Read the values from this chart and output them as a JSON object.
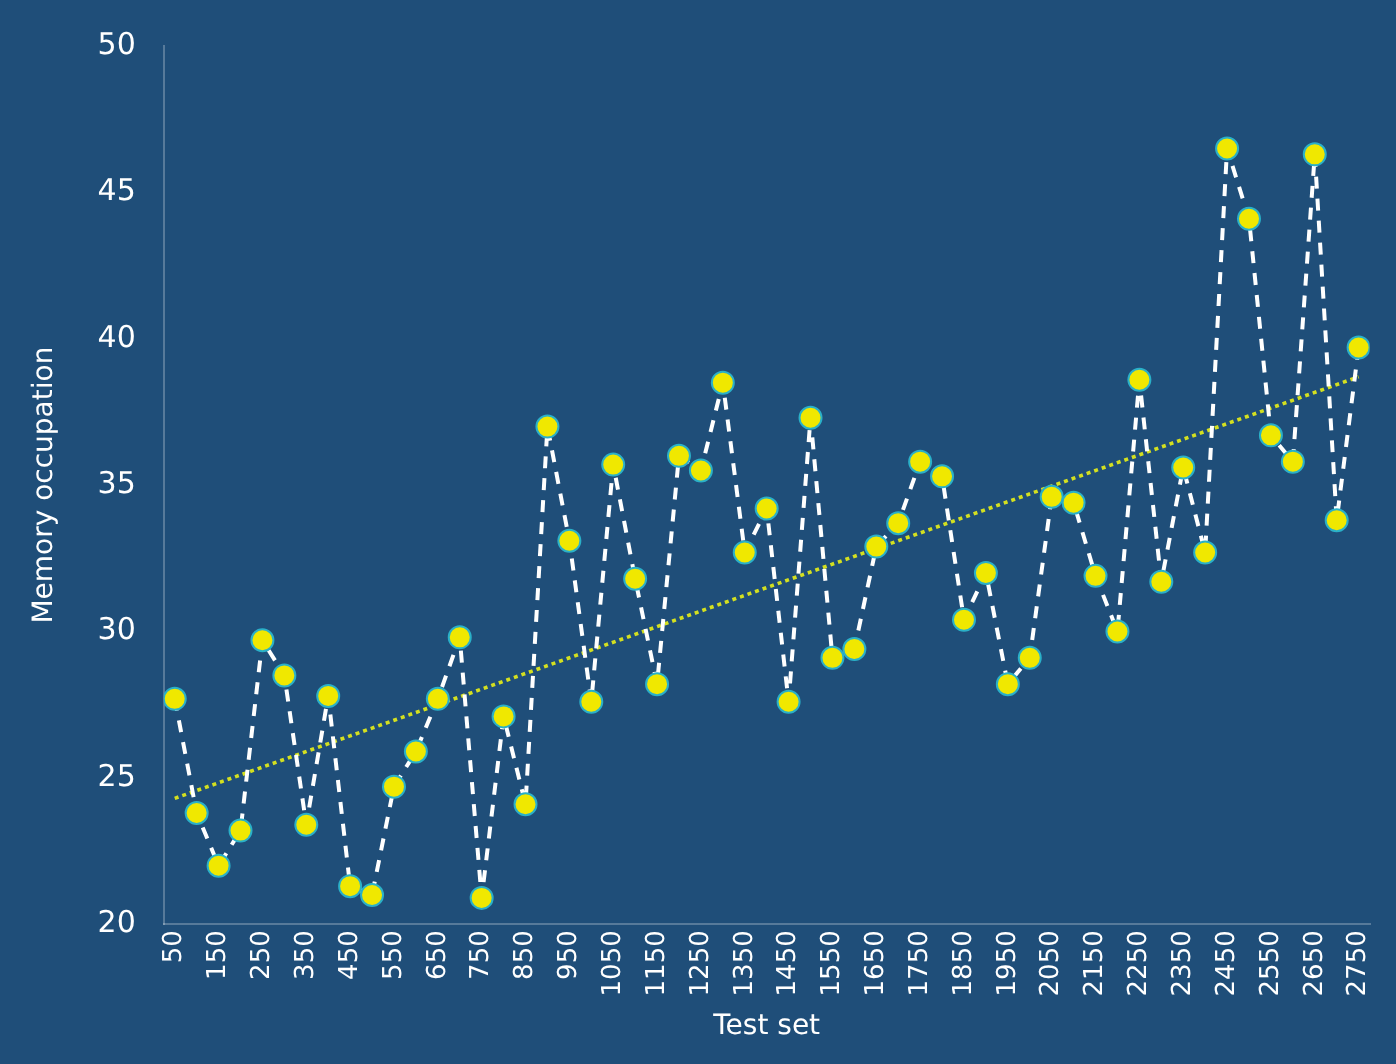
{
  "chart_data": {
    "type": "line",
    "xlabel": "Test set",
    "ylabel": "Memory occupation",
    "x": [
      50,
      100,
      150,
      200,
      250,
      300,
      350,
      400,
      450,
      500,
      550,
      600,
      650,
      700,
      750,
      800,
      850,
      900,
      950,
      1000,
      1050,
      1100,
      1150,
      1200,
      1250,
      1300,
      1350,
      1400,
      1450,
      1500,
      1550,
      1600,
      1650,
      1700,
      1750,
      1800,
      1850,
      1900,
      1950,
      2000,
      2050,
      2100,
      2150,
      2200,
      2250,
      2300,
      2350,
      2400,
      2450,
      2500,
      2550,
      2600,
      2650,
      2700,
      2750
    ],
    "series": [
      {
        "type": "line",
        "color": "#f0e800",
        "marker": "circle",
        "line_style": "dashed",
        "values": [
          27.7,
          23.8,
          22.0,
          23.2,
          29.7,
          28.5,
          23.4,
          27.8,
          21.3,
          21.0,
          24.7,
          25.9,
          27.7,
          29.8,
          20.9,
          27.1,
          24.1,
          37.0,
          33.1,
          27.6,
          35.7,
          31.8,
          28.2,
          36.0,
          35.5,
          38.5,
          32.7,
          34.2,
          27.6,
          37.3,
          29.1,
          29.4,
          32.9,
          33.7,
          35.8,
          35.3,
          30.4,
          32.0,
          28.2,
          29.1,
          34.6,
          34.4,
          31.9,
          30.0,
          38.6,
          31.7,
          35.6,
          32.7,
          46.5,
          44.1,
          36.7,
          35.8,
          46.3,
          33.8,
          39.7
        ]
      },
      {
        "type": "line",
        "color": "#d4e020",
        "marker": "none",
        "line_style": "dotted",
        "x": [
          50,
          2750
        ],
        "values": [
          24.3,
          38.7
        ]
      }
    ],
    "xlim": [
      25,
      2775
    ],
    "xticks": [
      50,
      150,
      250,
      350,
      450,
      550,
      650,
      750,
      850,
      950,
      1050,
      1150,
      1250,
      1350,
      1450,
      1550,
      1650,
      1750,
      1850,
      1950,
      2050,
      2150,
      2250,
      2350,
      2450,
      2550,
      2650,
      2750
    ],
    "ylim": [
      20,
      50
    ],
    "yticks": [
      20,
      25,
      30,
      35,
      40,
      45,
      50
    ],
    "grid": false,
    "legend": false
  }
}
